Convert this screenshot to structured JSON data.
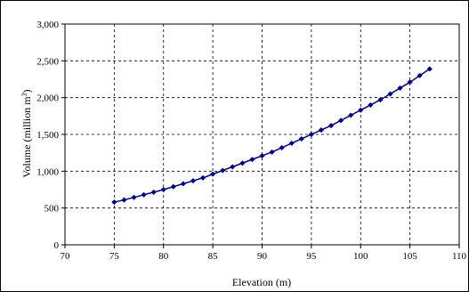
{
  "chart_data": {
    "type": "line",
    "xlabel": "Elevation (m)",
    "ylabel": "Volume (million m",
    "ylabel_sup": "3",
    "ylabel_end": ")",
    "xlim": [
      70,
      110
    ],
    "ylim": [
      0,
      3000
    ],
    "x_ticks": [
      70,
      75,
      80,
      85,
      90,
      95,
      100,
      105,
      110
    ],
    "x_tick_labels": [
      "70",
      "75",
      "80",
      "85",
      "90",
      "95",
      "100",
      "105",
      "110"
    ],
    "y_ticks": [
      0,
      500,
      1000,
      1500,
      2000,
      2500,
      3000
    ],
    "y_tick_labels": [
      "0",
      "500",
      "1,000",
      "1,500",
      "2,000",
      "2,500",
      "3,000"
    ],
    "grid": true,
    "series": [
      {
        "color": "#000080",
        "marker": "diamond",
        "x": [
          75,
          76,
          77,
          78,
          79,
          80,
          81,
          82,
          83,
          84,
          85,
          86,
          87,
          88,
          89,
          90,
          91,
          92,
          93,
          94,
          95,
          96,
          97,
          98,
          99,
          100,
          101,
          102,
          103,
          104,
          105,
          106,
          107
        ],
        "y": [
          580,
          610,
          645,
          680,
          715,
          750,
          790,
          830,
          870,
          910,
          960,
          1010,
          1060,
          1110,
          1160,
          1210,
          1260,
          1320,
          1380,
          1440,
          1500,
          1560,
          1620,
          1690,
          1760,
          1830,
          1900,
          1970,
          2050,
          2130,
          2210,
          2300,
          2390
        ]
      }
    ]
  }
}
